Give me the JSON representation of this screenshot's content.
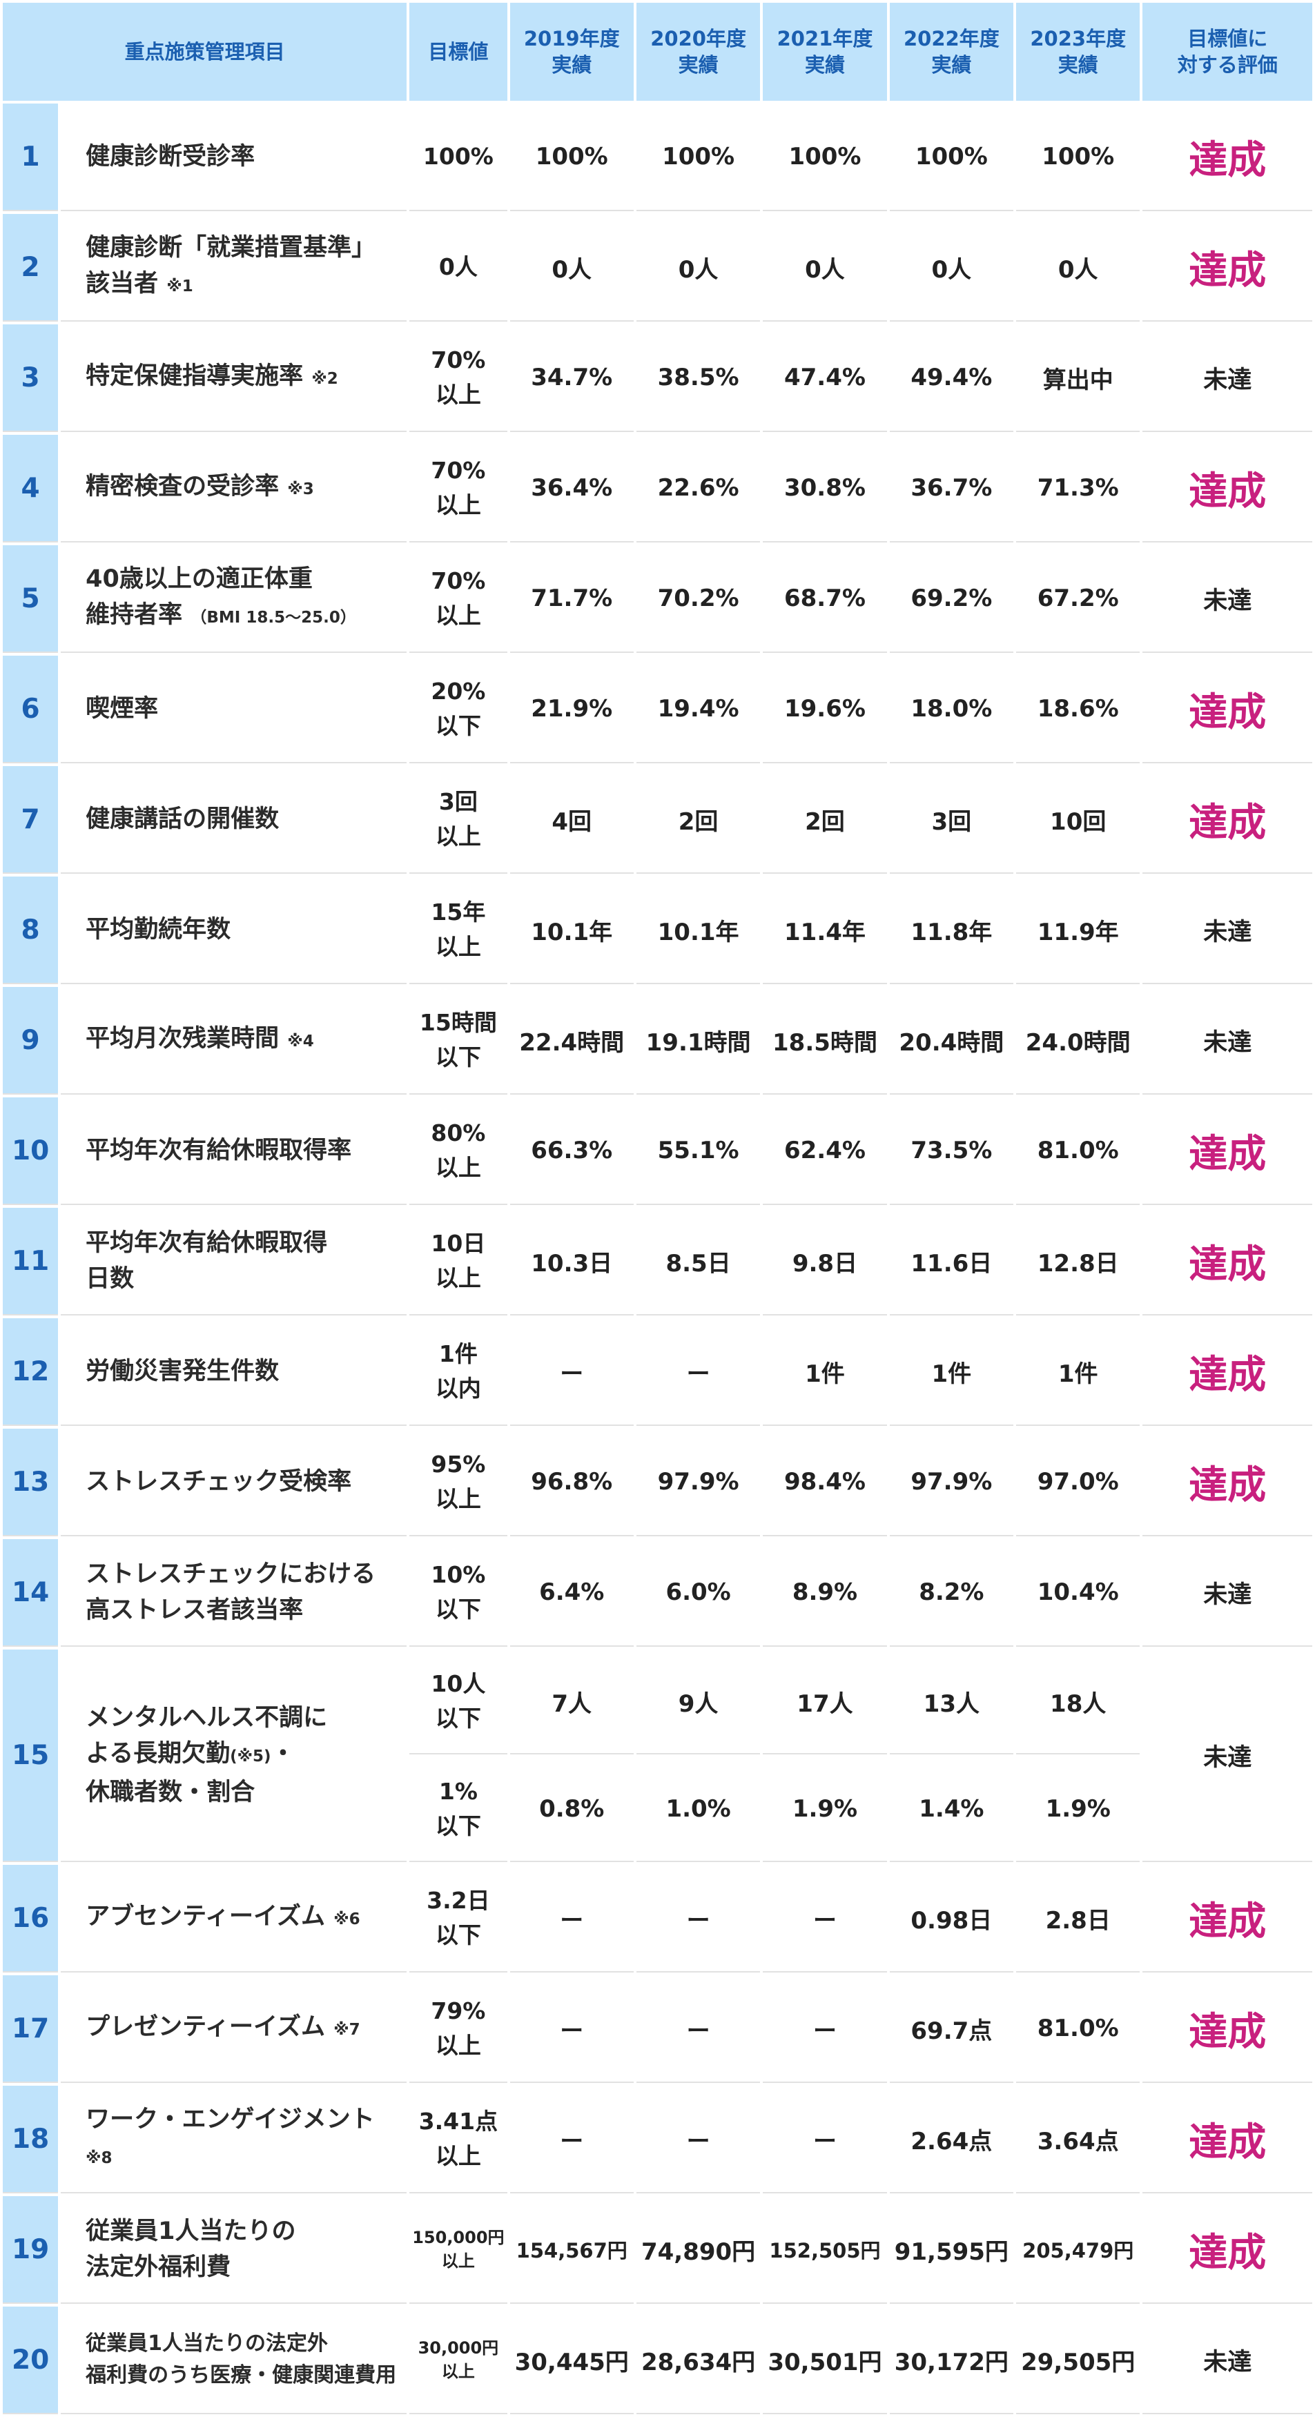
{
  "header": {
    "item": "重点施策管理項目",
    "target": "目標値",
    "y2019": "2019年度\n実績",
    "y2020": "2020年度\n実績",
    "y2021": "2021年度\n実績",
    "y2022": "2022年度\n実績",
    "y2023": "2023年度\n実績",
    "evaluation": "目標値に\n対する評価"
  },
  "rows": [
    {
      "no": "1",
      "item": "健康診断受診率",
      "note": "",
      "target": "100%",
      "v2019": "100%",
      "v2020": "100%",
      "v2021": "100%",
      "v2022": "100%",
      "v2023": "100%",
      "eval": "達成"
    },
    {
      "no": "2",
      "item": "健康診断「就業措置基準」\n該当者",
      "note": "※1",
      "target": "0人",
      "v2019": "0人",
      "v2020": "0人",
      "v2021": "0人",
      "v2022": "0人",
      "v2023": "0人",
      "eval": "達成"
    },
    {
      "no": "3",
      "item": "特定保健指導実施率",
      "note": "※2",
      "target": "70%\n以上",
      "v2019": "34.7%",
      "v2020": "38.5%",
      "v2021": "47.4%",
      "v2022": "49.4%",
      "v2023": "算出中",
      "eval": "未達"
    },
    {
      "no": "4",
      "item": "精密検査の受診率",
      "note": "※3",
      "target": "70%\n以上",
      "v2019": "36.4%",
      "v2020": "22.6%",
      "v2021": "30.8%",
      "v2022": "36.7%",
      "v2023": "71.3%",
      "eval": "達成"
    },
    {
      "no": "5",
      "item": "40歳以上の適正体重\n維持者率",
      "note": "（BMI 18.5〜25.0）",
      "target": "70%\n以上",
      "v2019": "71.7%",
      "v2020": "70.2%",
      "v2021": "68.7%",
      "v2022": "69.2%",
      "v2023": "67.2%",
      "eval": "未達"
    },
    {
      "no": "6",
      "item": "喫煙率",
      "note": "",
      "target": "20%\n以下",
      "v2019": "21.9%",
      "v2020": "19.4%",
      "v2021": "19.6%",
      "v2022": "18.0%",
      "v2023": "18.6%",
      "eval": "達成"
    },
    {
      "no": "7",
      "item": "健康講話の開催数",
      "note": "",
      "target": "3回\n以上",
      "v2019": "4回",
      "v2020": "2回",
      "v2021": "2回",
      "v2022": "3回",
      "v2023": "10回",
      "eval": "達成"
    },
    {
      "no": "8",
      "item": "平均勤続年数",
      "note": "",
      "target": "15年\n以上",
      "v2019": "10.1年",
      "v2020": "10.1年",
      "v2021": "11.4年",
      "v2022": "11.8年",
      "v2023": "11.9年",
      "eval": "未達"
    },
    {
      "no": "9",
      "item": "平均月次残業時間",
      "note": "※4",
      "target": "15時間\n以下",
      "v2019": "22.4時間",
      "v2020": "19.1時間",
      "v2021": "18.5時間",
      "v2022": "20.4時間",
      "v2023": "24.0時間",
      "eval": "未達"
    },
    {
      "no": "10",
      "item": "平均年次有給休暇取得率",
      "note": "",
      "target": "80%\n以上",
      "v2019": "66.3%",
      "v2020": "55.1%",
      "v2021": "62.4%",
      "v2022": "73.5%",
      "v2023": "81.0%",
      "eval": "達成"
    },
    {
      "no": "11",
      "item": "平均年次有給休暇取得\n日数",
      "note": "",
      "target": "10日\n以上",
      "v2019": "10.3日",
      "v2020": "8.5日",
      "v2021": "9.8日",
      "v2022": "11.6日",
      "v2023": "12.8日",
      "eval": "達成"
    },
    {
      "no": "12",
      "item": "労働災害発生件数",
      "note": "",
      "target": "1件\n以内",
      "v2019": "ー",
      "v2020": "ー",
      "v2021": "1件",
      "v2022": "1件",
      "v2023": "1件",
      "eval": "達成"
    },
    {
      "no": "13",
      "item": "ストレスチェック受検率",
      "note": "",
      "target": "95%\n以上",
      "v2019": "96.8%",
      "v2020": "97.9%",
      "v2021": "98.4%",
      "v2022": "97.9%",
      "v2023": "97.0%",
      "eval": "達成"
    },
    {
      "no": "14",
      "item": "ストレスチェックにおける\n高ストレス者該当率",
      "note": "",
      "target": "10%\n以下",
      "v2019": "6.4%",
      "v2020": "6.0%",
      "v2021": "8.9%",
      "v2022": "8.2%",
      "v2023": "10.4%",
      "eval": "未達"
    }
  ],
  "row15": {
    "no": "15",
    "item_a": "メンタルヘルス不調に\nよる長期欠勤",
    "note": "(※5)",
    "item_b": "・\n休職者数・割合",
    "eval": "未達",
    "sub1": {
      "target": "10人\n以下",
      "v2019": "7人",
      "v2020": "9人",
      "v2021": "17人",
      "v2022": "13人",
      "v2023": "18人"
    },
    "sub2": {
      "target": "1%\n以下",
      "v2019": "0.8%",
      "v2020": "1.0%",
      "v2021": "1.9%",
      "v2022": "1.4%",
      "v2023": "1.9%"
    }
  },
  "rows_after": [
    {
      "no": "16",
      "item": "アブセンティーイズム",
      "note": "※6",
      "target": "3.2日\n以下",
      "v2019": "ー",
      "v2020": "ー",
      "v2021": "ー",
      "v2022": "0.98日",
      "v2023": "2.8日",
      "eval": "達成"
    },
    {
      "no": "17",
      "item": "プレゼンティーイズム",
      "note": "※7",
      "target": "79%\n以上",
      "v2019": "ー",
      "v2020": "ー",
      "v2021": "ー",
      "v2022": "69.7点",
      "v2023": "81.0%",
      "eval": "達成"
    },
    {
      "no": "18",
      "item": "ワーク・エンゲイジメント\n",
      "note": "※8",
      "target": "3.41点\n以上",
      "v2019": "ー",
      "v2020": "ー",
      "v2021": "ー",
      "v2022": "2.64点",
      "v2023": "3.64点",
      "eval": "達成"
    },
    {
      "no": "19",
      "item": "従業員1人当たりの\n法定外福利費",
      "note": "",
      "target": "150,000円\n以上",
      "v2019": "154,567円",
      "v2020": "74,890円",
      "v2021": "152,505円",
      "v2022": "91,595円",
      "v2023": "205,479円",
      "eval": "達成"
    },
    {
      "no": "20",
      "item": "従業員1人当たりの法定外\n福利費のうち医療・健康関連費用",
      "note": "",
      "target": "30,000円\n以上",
      "v2019": "30,445円",
      "v2020": "28,634円",
      "v2021": "30,501円",
      "v2022": "30,172円",
      "v2023": "29,505円",
      "eval": "未達"
    }
  ],
  "achieved_label": "達成",
  "colors": {
    "header_bg": "#bfe3fb",
    "header_text": "#1b5fb0",
    "achieved": "#c8207e"
  }
}
